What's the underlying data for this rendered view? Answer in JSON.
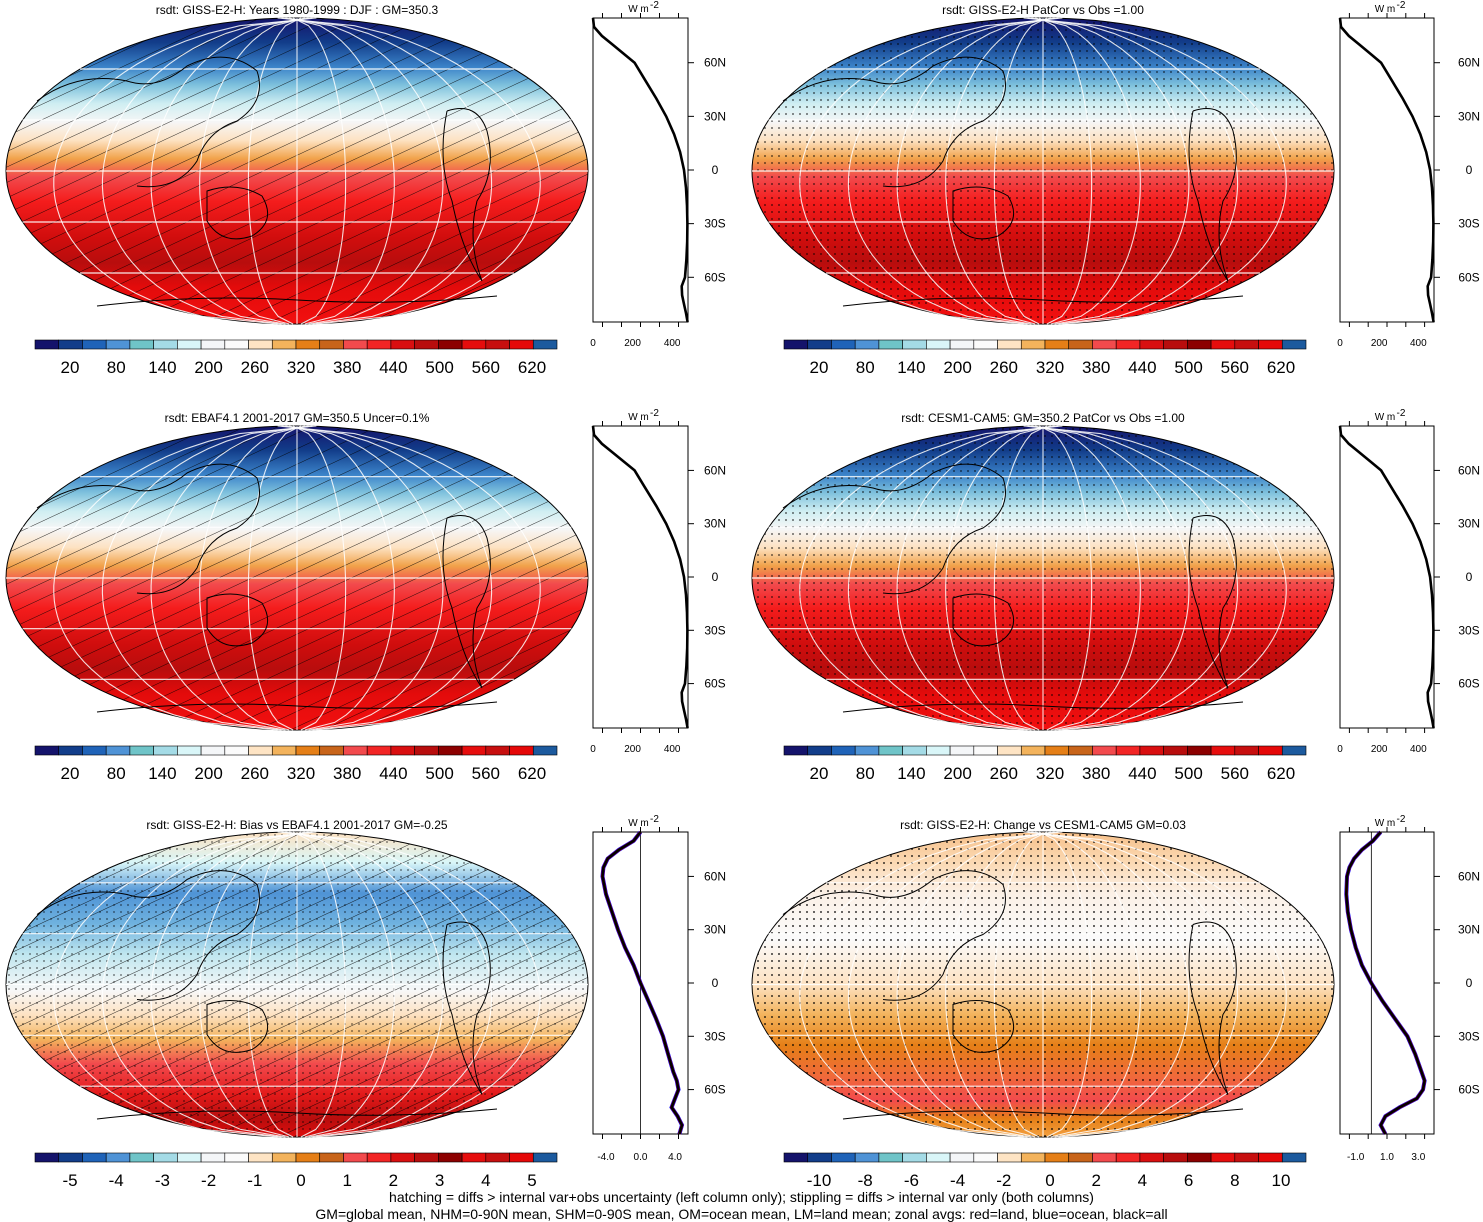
{
  "colors": {
    "map_colorbar": [
      "#14136b",
      "#123d8a",
      "#1f63b8",
      "#4f93d6",
      "#6fc4c8",
      "#a4dbe6",
      "#d9f6f8",
      "#f4f6f8",
      "#fbfbfb",
      "#fee4c4",
      "#f3b35c",
      "#e57f17",
      "#c8641a",
      "#f24a4d",
      "#f22525",
      "#d90f10",
      "#b80d0d",
      "#8c0000",
      "#e60d0d",
      "#c70f0f",
      "#e50808",
      "#1c5a9e"
    ],
    "diff_colorbar": [
      "#14136b",
      "#123d8a",
      "#1f63b8",
      "#4f93d6",
      "#6fc4c8",
      "#a4dbe6",
      "#d9f6f8",
      "#f4f6f8",
      "#fbfbfb",
      "#fee4c4",
      "#f3b35c",
      "#e57f17",
      "#c8641a",
      "#f24a4d",
      "#f22525",
      "#d90f10",
      "#b80d0d",
      "#8c0000",
      "#e60d0d",
      "#c70f0f",
      "#e50808",
      "#1c5a9e"
    ],
    "zonal_all": "#000000",
    "zonal_land": "#ff0000",
    "zonal_ocean": "#0000ff"
  },
  "lat_labels": [
    "60N",
    "30N",
    "0",
    "30S",
    "60S"
  ],
  "lat_values": [
    60,
    30,
    0,
    -30,
    -60
  ],
  "zonal_unit": "W m",
  "zonal_unit_exp": "-2",
  "panels": [
    {
      "title": "rsdt: GISS-E2-H: Years 1980-1999 : DJF : GM=350.3",
      "colorbar_labels": [
        "20",
        "80",
        "140",
        "200",
        "260",
        "320",
        "380",
        "440",
        "500",
        "560",
        "620"
      ],
      "hatched": true,
      "chart_data": {
        "type": "line",
        "title": "rsdt: GISS-E2-H: Years 1980-1999 : DJF : GM=350.3",
        "x_tick_labels": [
          "0",
          "200",
          "400"
        ],
        "xlim": [
          0,
          480
        ],
        "series": [
          {
            "lat": [
              85,
              80,
              75,
              70,
              65,
              60,
              50,
              40,
              30,
              20,
              10,
              0,
              -10,
              -20,
              -30,
              -40,
              -50,
              -60,
              -65,
              -70,
              -75,
              -80,
              -85
            ],
            "values": [
              0,
              5,
              45,
              100,
              155,
              210,
              265,
              320,
              370,
              410,
              440,
              460,
              470,
              475,
              477,
              476,
              472,
              465,
              448,
              450,
              460,
              470,
              478
            ]
          }
        ]
      }
    },
    {
      "title": "rsdt: GISS-E2-H PatCor vs Obs =1.00",
      "colorbar_labels": [
        "20",
        "80",
        "140",
        "200",
        "260",
        "320",
        "380",
        "440",
        "500",
        "560",
        "620"
      ],
      "hatched": false,
      "chart_data": {
        "type": "line",
        "title": "rsdt: GISS-E2-H PatCor vs Obs =1.00",
        "x_tick_labels": [
          "0",
          "200",
          "400"
        ],
        "xlim": [
          0,
          480
        ],
        "series": [
          {
            "lat": [
              85,
              80,
              75,
              70,
              65,
              60,
              50,
              40,
              30,
              20,
              10,
              0,
              -10,
              -20,
              -30,
              -40,
              -50,
              -60,
              -65,
              -70,
              -75,
              -80,
              -85
            ],
            "values": [
              0,
              5,
              45,
              100,
              155,
              210,
              265,
              320,
              370,
              410,
              440,
              460,
              470,
              475,
              477,
              476,
              472,
              465,
              448,
              450,
              460,
              470,
              478
            ]
          }
        ]
      }
    },
    {
      "title": "rsdt: EBAF4.1 2001-2017 GM=350.5 Uncer=0.1%",
      "colorbar_labels": [
        "20",
        "80",
        "140",
        "200",
        "260",
        "320",
        "380",
        "440",
        "500",
        "560",
        "620"
      ],
      "hatched": true,
      "chart_data": {
        "type": "line",
        "title": "rsdt: EBAF4.1 2001-2017 GM=350.5 Uncer=0.1%",
        "x_tick_labels": [
          "0",
          "200",
          "400"
        ],
        "xlim": [
          0,
          480
        ],
        "series": [
          {
            "lat": [
              85,
              80,
              75,
              70,
              65,
              60,
              50,
              40,
              30,
              20,
              10,
              0,
              -10,
              -20,
              -30,
              -40,
              -50,
              -60,
              -65,
              -70,
              -75,
              -80,
              -85
            ],
            "values": [
              0,
              5,
              45,
              100,
              155,
              210,
              265,
              320,
              370,
              410,
              440,
              460,
              470,
              475,
              477,
              476,
              472,
              465,
              448,
              450,
              460,
              470,
              478
            ]
          }
        ]
      }
    },
    {
      "title": "rsdt: CESM1-CAM5: GM=350.2 PatCor vs Obs =1.00",
      "colorbar_labels": [
        "20",
        "80",
        "140",
        "200",
        "260",
        "320",
        "380",
        "440",
        "500",
        "560",
        "620"
      ],
      "hatched": false,
      "chart_data": {
        "type": "line",
        "title": "rsdt: CESM1-CAM5: GM=350.2 PatCor vs Obs =1.00",
        "x_tick_labels": [
          "0",
          "200",
          "400"
        ],
        "xlim": [
          0,
          480
        ],
        "series": [
          {
            "lat": [
              85,
              80,
              75,
              70,
              65,
              60,
              50,
              40,
              30,
              20,
              10,
              0,
              -10,
              -20,
              -30,
              -40,
              -50,
              -60,
              -65,
              -70,
              -75,
              -80,
              -85
            ],
            "values": [
              0,
              5,
              45,
              100,
              155,
              210,
              265,
              320,
              370,
              410,
              440,
              460,
              470,
              475,
              477,
              476,
              472,
              465,
              448,
              450,
              460,
              470,
              478
            ]
          }
        ]
      }
    },
    {
      "title": "rsdt: GISS-E2-H: Bias vs EBAF4.1 2001-2017 GM=-0.25",
      "colorbar_labels": [
        "-5",
        "-4",
        "-3",
        "-2",
        "-1",
        "0",
        "1",
        "2",
        "3",
        "4",
        "5"
      ],
      "hatched": true,
      "chart_data": {
        "type": "line",
        "title": "rsdt: GISS-E2-H: Bias vs EBAF4.1 2001-2017 GM=-0.25",
        "x_tick_labels": [
          "-4.0",
          "0.0",
          "4.0"
        ],
        "xlim": [
          -5.5,
          5.5
        ],
        "series": [
          {
            "lat": [
              85,
              80,
              75,
              70,
              65,
              60,
              50,
              40,
              30,
              20,
              10,
              0,
              -10,
              -20,
              -30,
              -40,
              -50,
              -55,
              -60,
              -65,
              -70,
              -75,
              -80,
              -85
            ],
            "values": [
              0,
              -0.8,
              -2.5,
              -3.8,
              -4.3,
              -4.4,
              -4.0,
              -3.3,
              -2.6,
              -1.8,
              -0.8,
              0.0,
              0.9,
              1.8,
              2.6,
              3.2,
              3.8,
              4.2,
              4.4,
              4.0,
              3.6,
              4.3,
              4.8,
              4.5
            ]
          }
        ]
      }
    },
    {
      "title": "rsdt: GISS-E2-H: Change vs CESM1-CAM5 GM=0.03",
      "colorbar_labels": [
        "-10",
        "-8",
        "-6",
        "-4",
        "-2",
        "0",
        "2",
        "4",
        "6",
        "8",
        "10"
      ],
      "hatched": false,
      "chart_data": {
        "type": "line",
        "title": "rsdt: GISS-E2-H: Change vs CESM1-CAM5 GM=0.03",
        "x_tick_labels": [
          "-1.0",
          "1.0",
          "3.0"
        ],
        "xlim": [
          -2,
          4
        ],
        "series": [
          {
            "lat": [
              85,
              80,
              75,
              70,
              65,
              60,
              50,
              40,
              30,
              20,
              10,
              0,
              -10,
              -20,
              -30,
              -40,
              -50,
              -55,
              -60,
              -65,
              -70,
              -75,
              -80,
              -85
            ],
            "values": [
              0.6,
              0.1,
              -0.6,
              -1.1,
              -1.4,
              -1.55,
              -1.6,
              -1.5,
              -1.3,
              -1.0,
              -0.6,
              0.0,
              0.7,
              1.5,
              2.3,
              2.8,
              3.2,
              3.4,
              3.3,
              2.9,
              1.8,
              0.9,
              0.6,
              0.9
            ]
          }
        ]
      }
    }
  ],
  "footer": {
    "line1": "hatching = diffs > internal var+obs uncertainty (left column only); stippling = diffs > internal var only (both columns)",
    "line2": "GM=global mean, NHM=0-90N mean, SHM=0-90S mean, OM=ocean mean, LM=land mean; zonal avgs: red=land, blue=ocean, black=all"
  }
}
